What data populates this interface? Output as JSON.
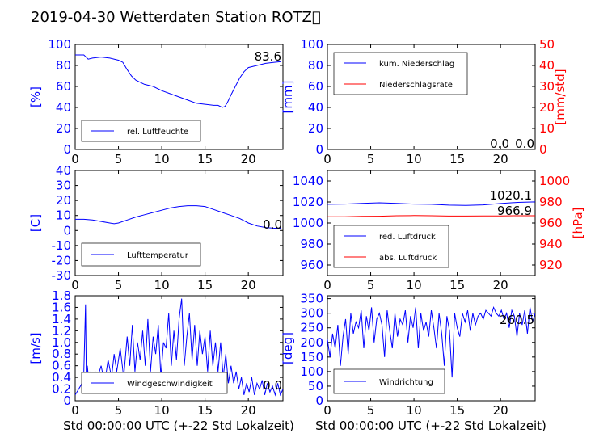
{
  "title": "2019-04-30 Wetterdaten Station ROTZ\u0000",
  "xlabel": "Std 00:00:00 UTC (+-22 Std Lokalzeit)",
  "colors": {
    "primary": "#0000ff",
    "secondary": "#ff0000",
    "axis": "#000000"
  },
  "chart_data": [
    {
      "type": "line",
      "ylabel": "[%]",
      "xlim": [
        0,
        24
      ],
      "xticks": [
        0,
        5,
        10,
        15,
        20
      ],
      "ylim": [
        0,
        100
      ],
      "yticks": [
        0,
        20,
        40,
        60,
        80,
        100
      ],
      "legend_position": "bottom-left",
      "value_label": "83.6",
      "series": [
        {
          "name": "rel. Luftfeuchte",
          "x": [
            0,
            1,
            1.5,
            2,
            3,
            4,
            5,
            5.5,
            6,
            6.5,
            7,
            8,
            9,
            10,
            11,
            12,
            13,
            14,
            15,
            16,
            16.5,
            17,
            17.3,
            17.6,
            18,
            18.5,
            19,
            19.5,
            20,
            21,
            22,
            23,
            23.8
          ],
          "y": [
            90,
            90,
            86,
            87,
            88,
            87,
            85,
            83,
            76,
            70,
            66,
            62,
            60,
            56,
            53,
            50,
            47,
            44,
            43,
            42,
            42,
            40,
            41,
            45,
            52,
            60,
            68,
            74,
            78,
            80,
            82,
            83,
            83.6
          ]
        }
      ]
    },
    {
      "type": "line",
      "ylabel": "[mm]",
      "ylabel_right": "[mm/std]",
      "xlim": [
        0,
        24
      ],
      "xticks": [
        0,
        5,
        10,
        15,
        20
      ],
      "ylim": [
        0,
        100
      ],
      "yticks": [
        0,
        20,
        40,
        60,
        80,
        100
      ],
      "ylim_right": [
        0,
        50
      ],
      "yticks_right": [
        0,
        10,
        20,
        30,
        40,
        50
      ],
      "legend_position": "top-left",
      "value_labels": [
        "0.0",
        "0.0"
      ],
      "series": [
        {
          "name": "kum. Niederschlag",
          "axis": "left",
          "x": [
            0,
            24
          ],
          "y": [
            0,
            0
          ]
        },
        {
          "name": "Niederschlagsrate",
          "axis": "right",
          "x": [
            0,
            24
          ],
          "y": [
            0,
            0
          ]
        }
      ]
    },
    {
      "type": "line",
      "ylabel": "[C]",
      "xlim": [
        0,
        24
      ],
      "xticks": [
        0,
        5,
        10,
        15,
        20
      ],
      "ylim": [
        -30,
        40
      ],
      "yticks": [
        -30,
        -20,
        -10,
        0,
        10,
        20,
        30,
        40
      ],
      "legend_position": "bottom-left",
      "value_label": "0.0",
      "series": [
        {
          "name": "Lufttemperatur",
          "x": [
            0,
            1,
            2,
            3,
            4,
            4.5,
            5,
            6,
            7,
            8,
            9,
            10,
            11,
            12,
            13,
            14,
            15,
            16,
            17,
            18,
            19,
            20,
            21,
            22,
            23,
            23.8
          ],
          "y": [
            7.5,
            7.5,
            7,
            6,
            5,
            4.5,
            5,
            7,
            9,
            10.5,
            12,
            13.5,
            15,
            16,
            16.5,
            16.5,
            16,
            14,
            12,
            10,
            8,
            5,
            3,
            2,
            1.5,
            1.5
          ]
        }
      ]
    },
    {
      "type": "line",
      "ylabel_right": "[hPa]",
      "xlim": [
        0,
        24
      ],
      "xticks": [
        0,
        5,
        10,
        15,
        20
      ],
      "ylim": [
        950,
        1050
      ],
      "yticks": [
        960,
        980,
        1000,
        1020,
        1040
      ],
      "ylim_right": [
        910,
        1010
      ],
      "yticks_right": [
        920,
        940,
        960,
        980,
        1000
      ],
      "legend_position": "bottom-left",
      "value_labels": [
        "1020.1",
        "966.9"
      ],
      "series": [
        {
          "name": "red. Luftdruck",
          "axis": "left",
          "x": [
            0,
            2,
            4,
            6,
            8,
            10,
            12,
            14,
            16,
            18,
            20,
            22,
            24
          ],
          "y": [
            1017.8,
            1018,
            1018.6,
            1019.2,
            1018.6,
            1018,
            1017.8,
            1017,
            1016.8,
            1017.2,
            1018.5,
            1019.6,
            1020.1
          ]
        },
        {
          "name": "abs. Luftdruck",
          "axis": "right",
          "x": [
            0,
            2,
            4,
            6,
            8,
            10,
            12,
            14,
            16,
            18,
            20,
            22,
            24
          ],
          "y": [
            966,
            966,
            966.3,
            966.5,
            966.9,
            967.1,
            966.9,
            966.6,
            966.6,
            966.7,
            966.8,
            966.9,
            966.9
          ]
        }
      ]
    },
    {
      "type": "line",
      "ylabel": "[m/s]",
      "xlim": [
        0,
        24
      ],
      "xticks": [
        0,
        5,
        10,
        15,
        20
      ],
      "ylim": [
        0,
        1.8
      ],
      "yticks": [
        0,
        0.2,
        0.4,
        0.6,
        0.8,
        1.0,
        1.2,
        1.4,
        1.6,
        1.8
      ],
      "legend_position": "bottom-left",
      "value_label": "0.0",
      "series": [
        {
          "name": "Windgeschwindigkeit",
          "x": [
            0,
            0.4,
            0.8,
            1.0,
            1.2,
            1.3,
            1.4,
            1.6,
            1.8,
            2.0,
            2.3,
            2.6,
            3.0,
            3.4,
            3.8,
            4.2,
            4.5,
            4.8,
            5.2,
            5.6,
            6.0,
            6.3,
            6.6,
            6.9,
            7.2,
            7.5,
            7.8,
            8.1,
            8.4,
            8.7,
            9.0,
            9.3,
            9.6,
            9.9,
            10.2,
            10.5,
            10.8,
            11.1,
            11.4,
            11.7,
            12.0,
            12.3,
            12.6,
            12.9,
            13.2,
            13.5,
            13.8,
            14.1,
            14.4,
            14.7,
            15.0,
            15.3,
            15.6,
            15.9,
            16.2,
            16.5,
            16.8,
            17.1,
            17.4,
            17.7,
            18.0,
            18.3,
            18.6,
            18.9,
            19.2,
            19.5,
            19.8,
            20.1,
            20.4,
            20.7,
            21.0,
            21.3,
            21.6,
            21.9,
            22.2,
            22.5,
            22.8,
            23.1,
            23.4,
            23.7,
            24.0
          ],
          "y": [
            0.1,
            0.2,
            0.3,
            0.5,
            1.65,
            0.2,
            0.6,
            0.3,
            0.5,
            0.3,
            0.5,
            0.4,
            0.6,
            0.3,
            0.7,
            0.4,
            0.8,
            0.5,
            0.9,
            0.4,
            1.1,
            0.6,
            1.3,
            0.5,
            1.0,
            0.7,
            1.2,
            0.6,
            1.4,
            0.5,
            1.1,
            0.8,
            1.3,
            0.4,
            1.0,
            0.9,
            1.5,
            0.6,
            1.2,
            0.7,
            1.4,
            1.75,
            0.6,
            1.1,
            1.5,
            0.7,
            1.3,
            0.6,
            1.2,
            0.8,
            1.1,
            0.5,
            1.2,
            0.6,
            1.0,
            0.5,
            1.0,
            0.4,
            0.8,
            0.3,
            0.6,
            0.3,
            0.5,
            0.2,
            0.4,
            0.1,
            0.3,
            0.15,
            0.4,
            0.1,
            0.3,
            0.2,
            0.35,
            0.1,
            0.3,
            0.15,
            0.25,
            0.1,
            0.3,
            0.1,
            0.2
          ]
        }
      ]
    },
    {
      "type": "line",
      "ylabel": "[deg]",
      "xlim": [
        0,
        24
      ],
      "xticks": [
        0,
        5,
        10,
        15,
        20
      ],
      "ylim": [
        0,
        360
      ],
      "yticks": [
        0,
        50,
        100,
        150,
        200,
        250,
        300,
        350
      ],
      "legend_position": "bottom-left",
      "value_label": "260.5",
      "series": [
        {
          "name": "Windrichtung",
          "x": [
            0,
            0.3,
            0.6,
            0.9,
            1.2,
            1.5,
            1.8,
            2.1,
            2.4,
            2.7,
            3.0,
            3.3,
            3.6,
            3.9,
            4.2,
            4.5,
            4.8,
            5.1,
            5.4,
            5.7,
            6.0,
            6.3,
            6.6,
            6.9,
            7.2,
            7.5,
            7.8,
            8.1,
            8.4,
            8.7,
            9.0,
            9.3,
            9.6,
            9.9,
            10.2,
            10.5,
            10.8,
            11.1,
            11.4,
            11.7,
            12.0,
            12.3,
            12.6,
            12.9,
            13.2,
            13.5,
            13.8,
            14.1,
            14.4,
            14.7,
            15.0,
            15.3,
            15.6,
            15.9,
            16.2,
            16.5,
            16.8,
            17.1,
            17.4,
            17.7,
            18.0,
            18.3,
            18.6,
            18.9,
            19.2,
            19.5,
            19.8,
            20.1,
            20.4,
            20.7,
            21.0,
            21.3,
            21.6,
            21.9,
            22.2,
            22.5,
            22.8,
            23.1,
            23.4,
            23.7,
            24.0
          ],
          "y": [
            210,
            150,
            230,
            180,
            260,
            120,
            220,
            280,
            160,
            300,
            230,
            270,
            250,
            310,
            180,
            290,
            240,
            320,
            200,
            280,
            300,
            260,
            150,
            310,
            240,
            180,
            300,
            220,
            280,
            260,
            310,
            200,
            290,
            250,
            320,
            180,
            300,
            240,
            270,
            220,
            310,
            250,
            180,
            300,
            230,
            120,
            290,
            240,
            80,
            300,
            250,
            220,
            300,
            270,
            310,
            240,
            300,
            260,
            290,
            300,
            280,
            310,
            300,
            290,
            320,
            300,
            290,
            310,
            280,
            300,
            250,
            310,
            290,
            220,
            300,
            260,
            310,
            230,
            320,
            270,
            300
          ]
        }
      ]
    }
  ]
}
